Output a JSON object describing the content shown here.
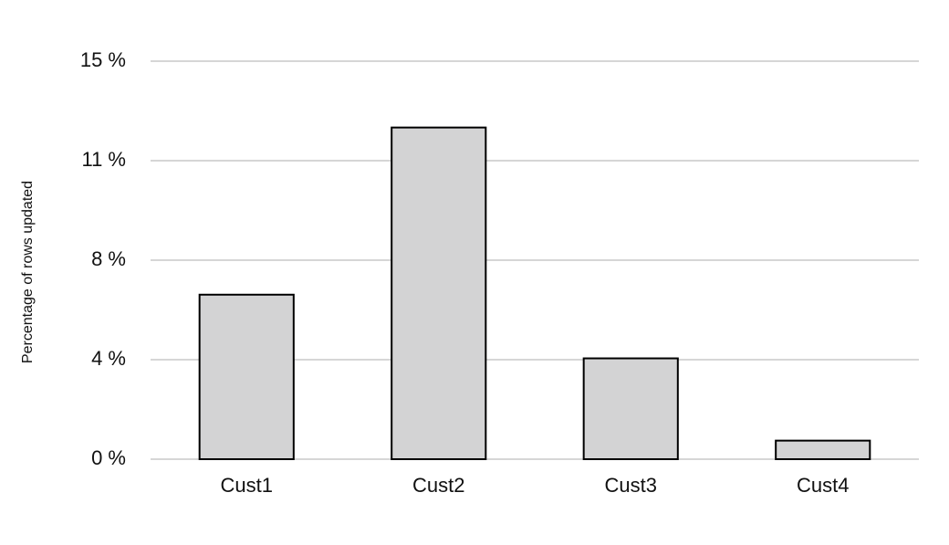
{
  "chart_data": {
    "type": "bar",
    "y_label": "Percentage of rows updated",
    "categories": [
      "Cust1",
      "Cust2",
      "Cust3",
      "Cust4"
    ],
    "values": [
      6.2,
      12.5,
      3.8,
      0.7
    ],
    "color": "#d3d3d4",
    "ylim": [
      0,
      15
    ],
    "yticks": [
      {
        "value": 0,
        "label": "0 %"
      },
      {
        "value": 3.75,
        "label": "4 %"
      },
      {
        "value": 7.5,
        "label": "8 %"
      },
      {
        "value": 11.25,
        "label": "11 %"
      },
      {
        "value": 15,
        "label": "15 %"
      }
    ],
    "grid": true
  }
}
